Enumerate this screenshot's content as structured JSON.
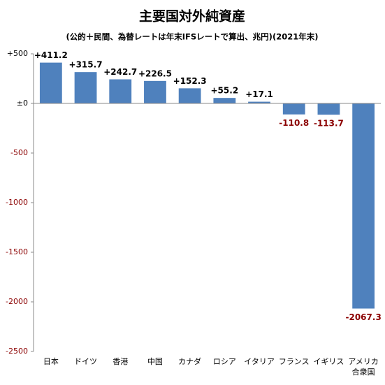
{
  "chart_data": {
    "type": "bar",
    "title": "主要国対外純資産",
    "subtitle": "(公的＋民間、為替レートは年末IFSレートで算出、兆円)(2021年末)",
    "categories": [
      "日本",
      "ドイツ",
      "香港",
      "中国",
      "カナダ",
      "ロシア",
      "イタリア",
      "フランス",
      "イギリス",
      "アメリカ合衆国"
    ],
    "values": [
      411.2,
      315.7,
      242.7,
      226.5,
      152.3,
      55.2,
      17.1,
      -110.8,
      -113.7,
      -2067.3
    ],
    "value_labels": [
      "+411.2",
      "+315.7",
      "+242.7",
      "+226.5",
      "+152.3",
      "+55.2",
      "+17.1",
      "-110.8",
      "-113.7",
      "-2067.3"
    ],
    "color": "#4f81bd",
    "ylim": [
      -2500,
      500
    ],
    "yticks": [
      {
        "value": 500,
        "label": "+500"
      },
      {
        "value": 0,
        "label": "±0"
      },
      -500,
      -1000,
      -1500,
      -2000,
      -2500
    ],
    "grid": false
  }
}
